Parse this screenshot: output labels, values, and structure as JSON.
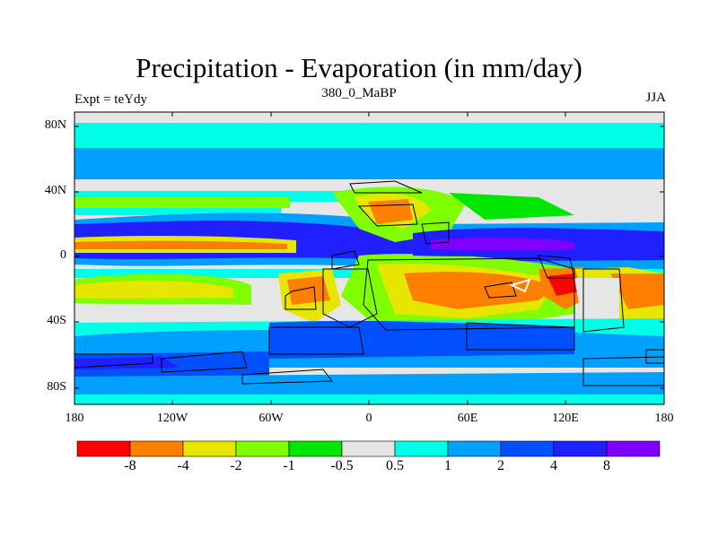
{
  "title": "Precipitation - Evaporation (in mm/day)",
  "subtitle": "380_0_MaBP",
  "left_label": "Expt = teYdy",
  "right_label": "JJA",
  "lat_labels": [
    "80N",
    "40N",
    "0",
    "40S",
    "80S"
  ],
  "lon_labels": [
    "180",
    "120W",
    "60W",
    "0",
    "60E",
    "120E",
    "180"
  ],
  "colorbar": {
    "labels": [
      "-8",
      "-4",
      "-2",
      "-1",
      "-0.5",
      "0.5",
      "1",
      "2",
      "4",
      "8"
    ],
    "colors": [
      "#ff0000",
      "#ff8000",
      "#e6e600",
      "#80ff00",
      "#00e600",
      "#e6e6e6",
      "#00ffe6",
      "#00a0ff",
      "#0050ff",
      "#2020ff",
      "#8000ff"
    ]
  },
  "palette": {
    "red": "#ff0000",
    "orange": "#ff8000",
    "yellow": "#e6e600",
    "lightgreen": "#80ff00",
    "green": "#00e600",
    "gray": "#e6e6e6",
    "cyan": "#00ffe6",
    "skyblue": "#00a0ff",
    "blue": "#0050ff",
    "darkblue": "#2020ff",
    "purple": "#8000ff"
  }
}
